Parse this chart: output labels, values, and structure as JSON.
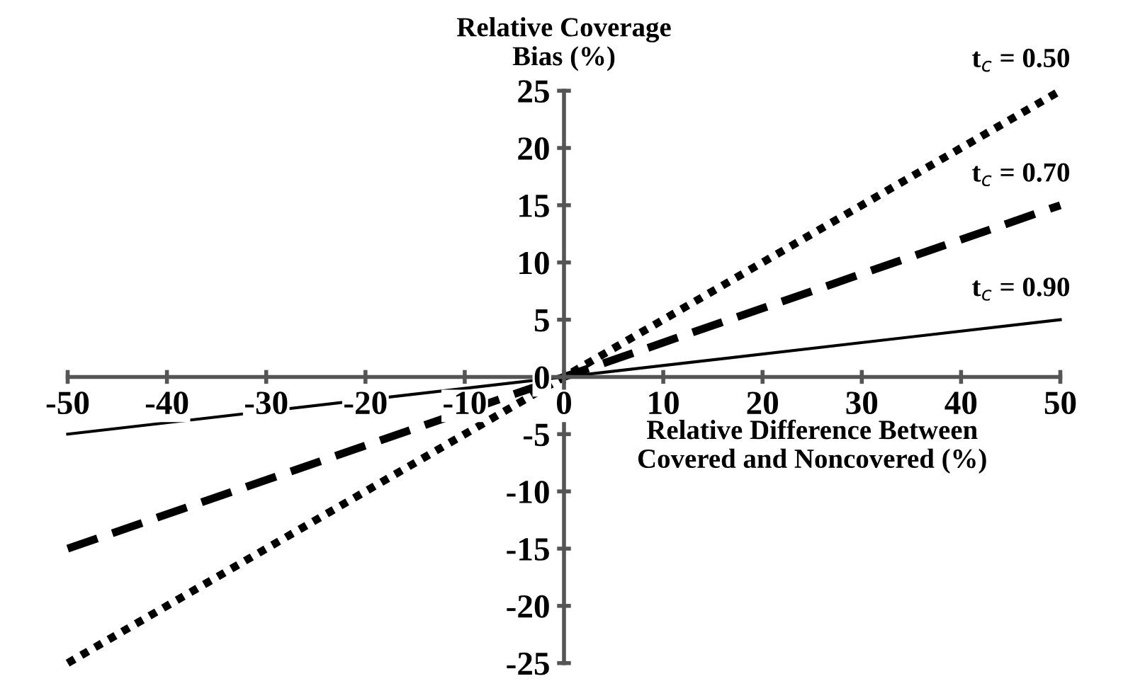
{
  "chart_data": {
    "type": "line",
    "xlabel": "Relative Difference Between\nCovered and Noncovered (%)",
    "ylabel": "Relative Coverage\nBias (%)",
    "x": [
      -50,
      50
    ],
    "series": [
      {
        "name": "t$_{c}$ = 0.50",
        "color": "#000000",
        "line_style": "dotted",
        "values": [
          -25,
          25
        ]
      },
      {
        "name": "t$_{c}$ = 0.70",
        "color": "#000000",
        "line_style": "dashed",
        "values": [
          -15,
          15
        ]
      },
      {
        "name": "t$_{c}$ = 0.90",
        "color": "#000000",
        "line_style": "solid",
        "values": [
          -5,
          5
        ]
      }
    ],
    "xlim": [
      -50,
      50
    ],
    "ylim": [
      -25,
      25
    ],
    "xticks": [
      -50,
      -40,
      -30,
      -20,
      -10,
      0,
      10,
      20,
      30,
      40,
      50
    ],
    "yticks": [
      -25,
      -20,
      -15,
      -10,
      -5,
      0,
      5,
      10,
      15,
      20,
      25
    ],
    "grid": false,
    "legend": false
  }
}
